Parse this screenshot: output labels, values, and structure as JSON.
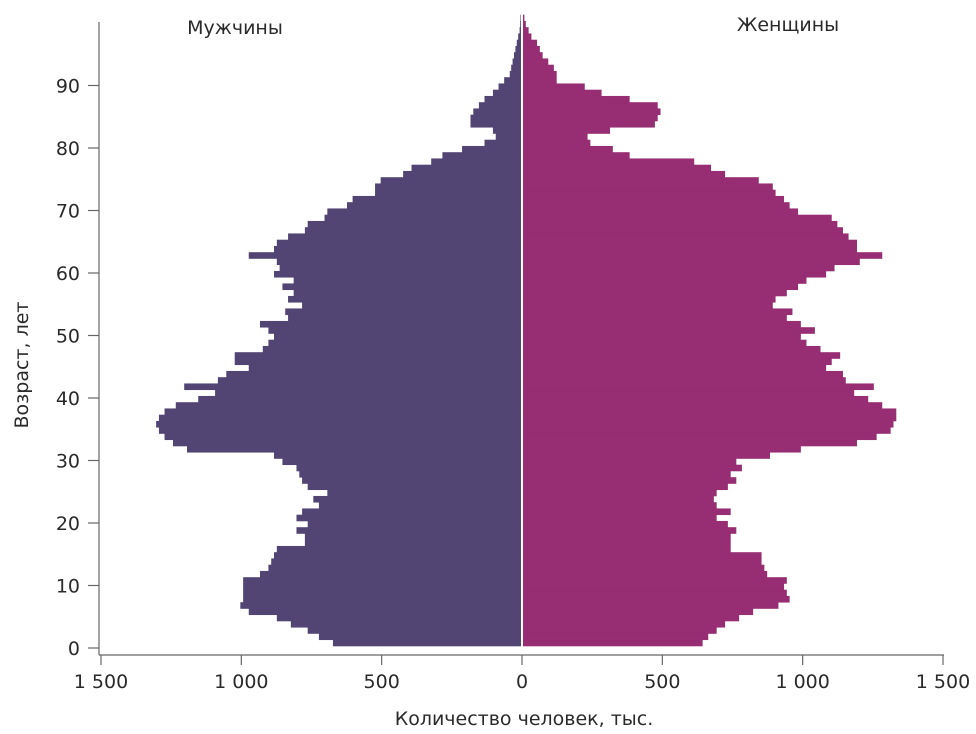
{
  "chart_data": {
    "type": "bar",
    "orientation": "horizontal",
    "chart_kind": "population pyramid",
    "left_label": "Мужчины",
    "right_label": "Женщины",
    "xlabel": "Количество человек, тыс.",
    "ylabel": "Возраст, лет",
    "xlim": [
      -1500,
      1500
    ],
    "ylim": [
      0,
      95
    ],
    "x_ticks": [
      -1500,
      -1000,
      -500,
      0,
      500,
      1000,
      1500
    ],
    "x_tick_labels": [
      "1 500",
      "1 000",
      "500",
      "0",
      "500",
      "1 000",
      "1 500"
    ],
    "y_ticks": [
      0,
      10,
      20,
      30,
      40,
      50,
      60,
      70,
      80,
      90
    ],
    "y_tick_labels": [
      "0",
      "10",
      "20",
      "30",
      "40",
      "50",
      "60",
      "70",
      "80",
      "90"
    ],
    "grid": false,
    "ages": [
      0,
      1,
      2,
      3,
      4,
      5,
      6,
      7,
      8,
      9,
      10,
      11,
      12,
      13,
      14,
      15,
      16,
      17,
      18,
      19,
      20,
      21,
      22,
      23,
      24,
      25,
      26,
      27,
      28,
      29,
      30,
      31,
      32,
      33,
      34,
      35,
      36,
      37,
      38,
      39,
      40,
      41,
      42,
      43,
      44,
      45,
      46,
      47,
      48,
      49,
      50,
      51,
      52,
      53,
      54,
      55,
      56,
      57,
      58,
      59,
      60,
      61,
      62,
      63,
      64,
      65,
      66,
      67,
      68,
      69,
      70,
      71,
      72,
      73,
      74,
      75,
      76,
      77,
      78,
      79,
      80,
      81,
      82,
      83,
      84,
      85,
      86,
      87,
      88,
      89,
      90,
      91,
      92,
      93,
      94,
      95,
      96,
      97,
      98,
      99,
      100
    ],
    "series": [
      {
        "name": "Мужчины",
        "color": "#524574",
        "values": [
          670,
          720,
          760,
          820,
          870,
          970,
          1000,
          990,
          990,
          990,
          990,
          930,
          900,
          890,
          880,
          870,
          770,
          770,
          800,
          760,
          800,
          780,
          720,
          740,
          690,
          760,
          780,
          790,
          800,
          850,
          880,
          1190,
          1240,
          1270,
          1290,
          1300,
          1290,
          1270,
          1230,
          1150,
          1090,
          1200,
          1080,
          1050,
          970,
          1020,
          1020,
          920,
          900,
          880,
          900,
          930,
          830,
          840,
          780,
          830,
          810,
          850,
          810,
          880,
          860,
          870,
          970,
          880,
          870,
          830,
          770,
          760,
          700,
          690,
          620,
          600,
          520,
          520,
          500,
          420,
          390,
          320,
          280,
          210,
          130,
          90,
          100,
          180,
          180,
          170,
          150,
          130,
          100,
          80,
          60,
          40,
          35,
          30,
          25,
          20,
          15,
          10,
          5,
          3,
          2
        ],
        "source_values_note": ""
      },
      {
        "name": "Женщины",
        "color": "#972d73",
        "values": [
          640,
          660,
          690,
          720,
          770,
          820,
          910,
          950,
          940,
          930,
          940,
          870,
          860,
          850,
          850,
          740,
          740,
          740,
          760,
          730,
          690,
          740,
          690,
          680,
          690,
          730,
          760,
          740,
          780,
          760,
          880,
          990,
          1190,
          1260,
          1310,
          1320,
          1330,
          1330,
          1280,
          1230,
          1180,
          1250,
          1150,
          1140,
          1080,
          1100,
          1130,
          1060,
          1010,
          990,
          1040,
          990,
          940,
          960,
          890,
          900,
          940,
          980,
          1010,
          1080,
          1110,
          1200,
          1280,
          1190,
          1190,
          1160,
          1140,
          1120,
          1100,
          980,
          950,
          930,
          900,
          890,
          840,
          720,
          670,
          610,
          380,
          320,
          240,
          230,
          310,
          470,
          480,
          490,
          480,
          380,
          280,
          220,
          120,
          120,
          110,
          90,
          70,
          60,
          50,
          30,
          20,
          10,
          5
        ]
      }
    ]
  }
}
